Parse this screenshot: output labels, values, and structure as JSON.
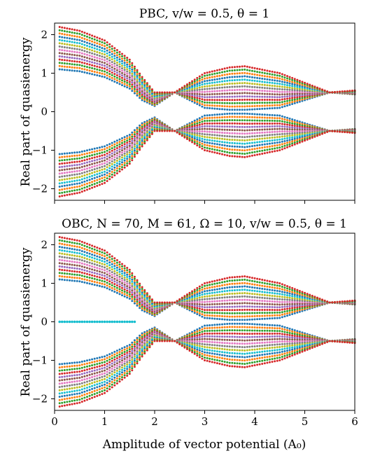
{
  "chart_data": [
    {
      "type": "scatter",
      "title": "PBC, v/w = 0.5, θ = 1",
      "xlabel": "",
      "ylabel": "Real part of quasienergy",
      "xlim": [
        0,
        6
      ],
      "ylim": [
        -2.3,
        2.3
      ],
      "xticks": [
        0,
        1,
        2,
        3,
        4,
        5,
        6
      ],
      "xtick_labels": [
        "",
        "",
        "",
        "",
        "",
        "",
        ""
      ],
      "yticks": [
        -2,
        -1,
        0,
        1,
        2
      ],
      "ytick_labels": [
        "−2",
        "−1",
        "0",
        "1",
        "2"
      ],
      "grid": false,
      "band_count": 14,
      "band_edge_points": {
        "A0": [
          0.1,
          0.5,
          1.0,
          1.5,
          1.75,
          2.0,
          2.4,
          3.0,
          3.5,
          3.8,
          4.5,
          5.0,
          5.5,
          6.0
        ],
        "upper_outer_edge": [
          2.2,
          2.1,
          1.85,
          1.35,
          0.9,
          0.5,
          0.5,
          1.0,
          1.15,
          1.18,
          1.0,
          0.75,
          0.5,
          0.55
        ],
        "upper_inner_edge": [
          1.1,
          1.05,
          0.9,
          0.6,
          0.3,
          0.15,
          0.5,
          0.1,
          0.05,
          0.05,
          0.1,
          0.3,
          0.5,
          0.45
        ]
      },
      "marker_colors": [
        "#1f77b4",
        "#ff7f0e",
        "#2ca02c",
        "#d62728",
        "#9467bd",
        "#8c564b",
        "#e377c2",
        "#7f7f7f",
        "#bcbd22",
        "#17becf"
      ]
    },
    {
      "type": "scatter",
      "title": "OBC, N = 70, M = 61, Ω = 10, v/w = 0.5, θ = 1",
      "xlabel": "Amplitude of vector potential (A₀)",
      "ylabel": "Real part of quasienergy",
      "xlim": [
        0,
        6
      ],
      "ylim": [
        -2.3,
        2.3
      ],
      "xticks": [
        0,
        1,
        2,
        3,
        4,
        5,
        6
      ],
      "xtick_labels": [
        "0",
        "1",
        "2",
        "3",
        "4",
        "5",
        "6"
      ],
      "yticks": [
        -2,
        -1,
        0,
        1,
        2
      ],
      "ytick_labels": [
        "−2",
        "−1",
        "0",
        "1",
        "2"
      ],
      "grid": false,
      "band_count": 14,
      "band_edge_points": {
        "A0": [
          0.1,
          0.5,
          1.0,
          1.5,
          1.75,
          2.0,
          2.4,
          3.0,
          3.5,
          3.8,
          4.5,
          5.0,
          5.5,
          6.0
        ],
        "upper_outer_edge": [
          2.2,
          2.1,
          1.85,
          1.35,
          0.9,
          0.5,
          0.5,
          1.0,
          1.15,
          1.18,
          1.0,
          0.75,
          0.5,
          0.55
        ],
        "upper_inner_edge": [
          1.1,
          1.05,
          0.9,
          0.6,
          0.3,
          0.15,
          0.5,
          0.1,
          0.05,
          0.05,
          0.1,
          0.3,
          0.5,
          0.45
        ]
      },
      "zero_modes": {
        "x_range": [
          0.1,
          1.6
        ],
        "y": 0
      },
      "marker_colors": [
        "#1f77b4",
        "#ff7f0e",
        "#2ca02c",
        "#d62728",
        "#9467bd",
        "#8c564b",
        "#e377c2",
        "#7f7f7f",
        "#bcbd22",
        "#17becf"
      ]
    }
  ]
}
